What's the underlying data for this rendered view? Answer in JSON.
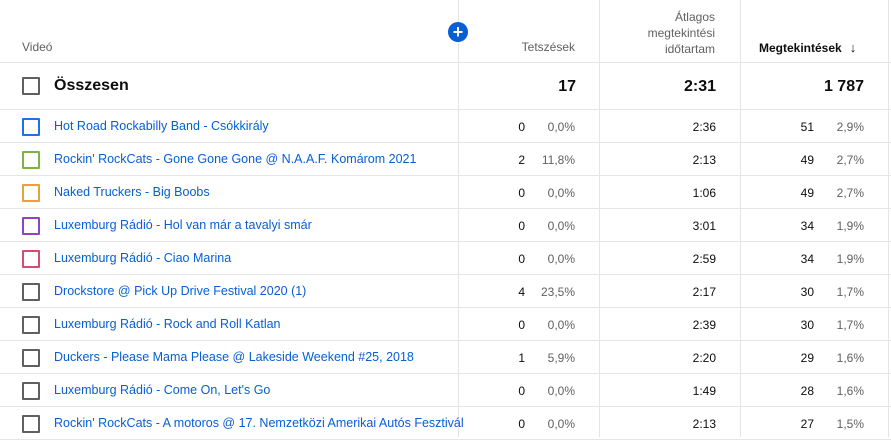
{
  "header": {
    "video_label": "Videó",
    "likes_label": "Tetszések",
    "avg_watch_line1": "Átlagos",
    "avg_watch_line2": "megtekintési",
    "avg_watch_line3": "időtartam",
    "views_label": "Megtekintések",
    "sort_arrow": "↓",
    "add_icon": "plus-circle-icon"
  },
  "total": {
    "label": "Összesen",
    "likes": "17",
    "avg": "2:31",
    "views": "1 787"
  },
  "rows": [
    {
      "title": "Hot Road Rockabilly Band - Csókkirály",
      "likes": "0",
      "likes_pct": "0,0%",
      "avg": "2:36",
      "views": "51",
      "views_pct": "2,9%",
      "color": "#1a73e8"
    },
    {
      "title": "Rockin' RockCats - Gone Gone Gone @ N.A.A.F. Komárom 2021",
      "likes": "2",
      "likes_pct": "11,8%",
      "avg": "2:13",
      "views": "49",
      "views_pct": "2,7%",
      "color": "#7cb342"
    },
    {
      "title": "Naked Truckers - Big Boobs",
      "likes": "0",
      "likes_pct": "0,0%",
      "avg": "1:06",
      "views": "49",
      "views_pct": "2,7%",
      "color": "#e6a23c"
    },
    {
      "title": "Luxemburg Rádió - Hol van már a tavalyi smár",
      "likes": "0",
      "likes_pct": "0,0%",
      "avg": "3:01",
      "views": "34",
      "views_pct": "1,9%",
      "color": "#8e44c9"
    },
    {
      "title": "Luxemburg Rádió - Ciao Marina",
      "likes": "0",
      "likes_pct": "0,0%",
      "avg": "2:59",
      "views": "34",
      "views_pct": "1,9%",
      "color": "#d14d72"
    },
    {
      "title": "Drockstore @ Pick Up Drive Festival 2020 (1)",
      "likes": "4",
      "likes_pct": "23,5%",
      "avg": "2:17",
      "views": "30",
      "views_pct": "1,7%",
      "color": "#606060"
    },
    {
      "title": "Luxemburg Rádió - Rock and Roll Katlan",
      "likes": "0",
      "likes_pct": "0,0%",
      "avg": "2:39",
      "views": "30",
      "views_pct": "1,7%",
      "color": "#606060"
    },
    {
      "title": "Duckers - Please Mama Please @ Lakeside Weekend #25, 2018",
      "likes": "1",
      "likes_pct": "5,9%",
      "avg": "2:20",
      "views": "29",
      "views_pct": "1,6%",
      "color": "#606060"
    },
    {
      "title": "Luxemburg Rádió - Come On, Let's Go",
      "likes": "0",
      "likes_pct": "0,0%",
      "avg": "1:49",
      "views": "28",
      "views_pct": "1,6%",
      "color": "#606060"
    },
    {
      "title": "Rockin' RockCats - A motoros @ 17. Nemzetközi Amerikai Autós Fesztivál",
      "likes": "0",
      "likes_pct": "0,0%",
      "avg": "2:13",
      "views": "27",
      "views_pct": "1,5%",
      "color": "#606060"
    }
  ]
}
